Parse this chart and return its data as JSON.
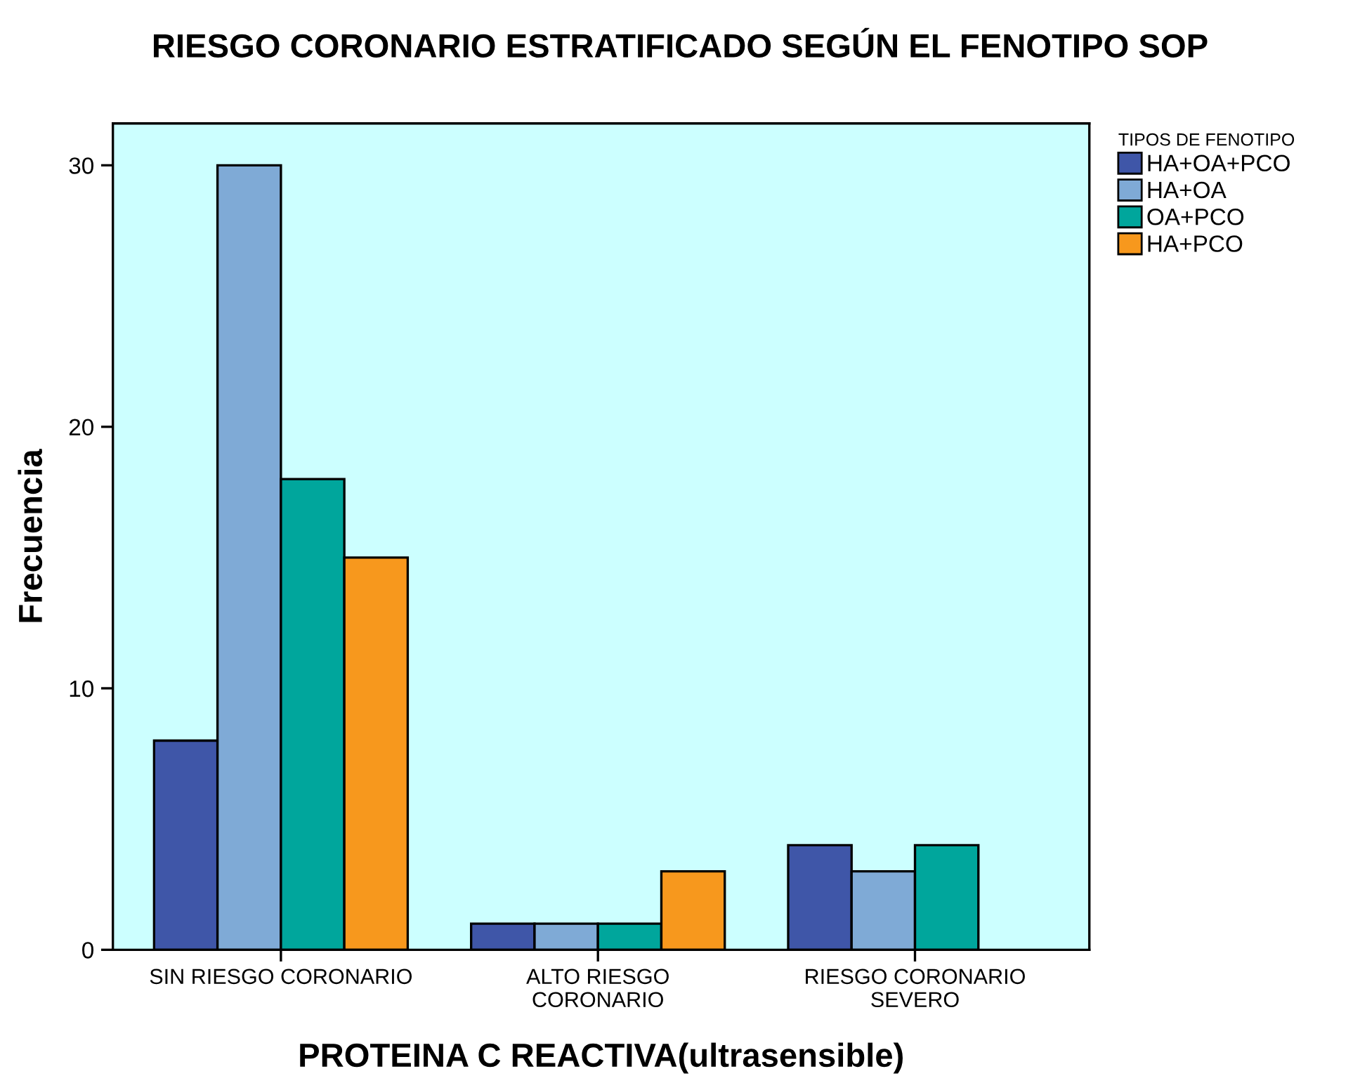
{
  "chart_data": {
    "type": "bar",
    "title": "RIESGO CORONARIO ESTRATIFICADO SEGÚN EL FENOTIPO SOP",
    "xlabel": "PROTEINA C REACTIVA(ultrasensible)",
    "ylabel": "Frecuencia",
    "legend_title": "TIPOS DE FENOTIPO",
    "categories": [
      "SIN RIESGO CORONARIO",
      "ALTO RIESGO\nCORONARIO",
      "RIESGO CORONARIO\nSEVERO"
    ],
    "series": [
      {
        "name": "HA+OA+PCO",
        "color": "#3f56a8",
        "values": [
          8,
          1,
          4
        ]
      },
      {
        "name": "HA+OA",
        "color": "#7faad6",
        "values": [
          30,
          1,
          3
        ]
      },
      {
        "name": "OA+PCO",
        "color": "#00a69c",
        "values": [
          18,
          1,
          4
        ]
      },
      {
        "name": "HA+PCO",
        "color": "#f7981d",
        "values": [
          15,
          3,
          null
        ]
      }
    ],
    "ylim": [
      0,
      31.6
    ],
    "yticks": [
      0,
      10,
      20,
      30
    ],
    "grid": false,
    "legend": "top right"
  }
}
